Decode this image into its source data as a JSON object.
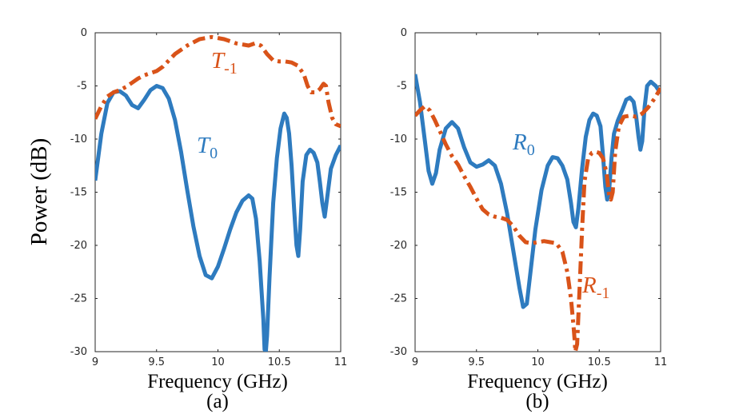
{
  "figure": {
    "ylabel": "Power (dB)"
  },
  "chart_data": [
    {
      "type": "line",
      "panel_label": "(a)",
      "xlabel": "Frequency (GHz)",
      "ylabel": "Power (dB)",
      "xlim": [
        9,
        11
      ],
      "ylim": [
        -30,
        0
      ],
      "xticks": [
        "9",
        "9.5",
        "10",
        "10.5",
        "11"
      ],
      "yticks": [
        "0",
        "-5",
        "-10",
        "-15",
        "-20",
        "-25",
        "-30"
      ],
      "series": [
        {
          "name": "T0",
          "label_main": "T",
          "label_sub": "0",
          "color": "#2e7bbf",
          "style": "solid",
          "points": [
            [
              9.0,
              -13.9
            ],
            [
              9.05,
              -9.5
            ],
            [
              9.1,
              -6.6
            ],
            [
              9.15,
              -5.6
            ],
            [
              9.2,
              -5.5
            ],
            [
              9.25,
              -5.9
            ],
            [
              9.3,
              -6.8
            ],
            [
              9.35,
              -7.1
            ],
            [
              9.4,
              -6.3
            ],
            [
              9.45,
              -5.4
            ],
            [
              9.5,
              -5.0
            ],
            [
              9.55,
              -5.2
            ],
            [
              9.6,
              -6.2
            ],
            [
              9.65,
              -8.2
            ],
            [
              9.7,
              -11.2
            ],
            [
              9.75,
              -14.8
            ],
            [
              9.8,
              -18.2
            ],
            [
              9.85,
              -21.0
            ],
            [
              9.9,
              -22.8
            ],
            [
              9.95,
              -23.1
            ],
            [
              10.0,
              -22.0
            ],
            [
              10.05,
              -20.3
            ],
            [
              10.1,
              -18.5
            ],
            [
              10.15,
              -16.9
            ],
            [
              10.2,
              -15.8
            ],
            [
              10.25,
              -15.3
            ],
            [
              10.28,
              -15.6
            ],
            [
              10.31,
              -17.5
            ],
            [
              10.34,
              -21.5
            ],
            [
              10.37,
              -27.0
            ],
            [
              10.38,
              -29.8
            ],
            [
              10.39,
              -30.0
            ],
            [
              10.4,
              -28.5
            ],
            [
              10.42,
              -23.0
            ],
            [
              10.45,
              -16.0
            ],
            [
              10.48,
              -11.8
            ],
            [
              10.51,
              -9.0
            ],
            [
              10.54,
              -7.6
            ],
            [
              10.56,
              -8.0
            ],
            [
              10.58,
              -9.5
            ],
            [
              10.6,
              -12.5
            ],
            [
              10.62,
              -16.5
            ],
            [
              10.64,
              -20.0
            ],
            [
              10.655,
              -21.0
            ],
            [
              10.67,
              -18.5
            ],
            [
              10.69,
              -14.0
            ],
            [
              10.72,
              -11.5
            ],
            [
              10.75,
              -11.0
            ],
            [
              10.78,
              -11.3
            ],
            [
              10.81,
              -12.2
            ],
            [
              10.83,
              -14.0
            ],
            [
              10.85,
              -16.0
            ],
            [
              10.87,
              -17.3
            ],
            [
              10.89,
              -15.5
            ],
            [
              10.92,
              -12.8
            ],
            [
              10.96,
              -11.5
            ],
            [
              11.0,
              -10.6
            ]
          ]
        },
        {
          "name": "T-1",
          "label_main": "T",
          "label_sub": "-1",
          "color": "#d95319",
          "style": "dashdot",
          "points": [
            [
              9.0,
              -8.1
            ],
            [
              9.05,
              -6.9
            ],
            [
              9.1,
              -6.0
            ],
            [
              9.15,
              -5.6
            ],
            [
              9.2,
              -5.4
            ],
            [
              9.25,
              -5.1
            ],
            [
              9.3,
              -4.7
            ],
            [
              9.35,
              -4.3
            ],
            [
              9.4,
              -4.0
            ],
            [
              9.45,
              -3.8
            ],
            [
              9.5,
              -3.6
            ],
            [
              9.55,
              -3.2
            ],
            [
              9.6,
              -2.6
            ],
            [
              9.65,
              -2.0
            ],
            [
              9.7,
              -1.6
            ],
            [
              9.75,
              -1.2
            ],
            [
              9.8,
              -0.9
            ],
            [
              9.85,
              -0.6
            ],
            [
              9.9,
              -0.5
            ],
            [
              9.95,
              -0.4
            ],
            [
              10.0,
              -0.5
            ],
            [
              10.05,
              -0.6
            ],
            [
              10.1,
              -0.8
            ],
            [
              10.15,
              -1.0
            ],
            [
              10.2,
              -1.1
            ],
            [
              10.25,
              -1.2
            ],
            [
              10.3,
              -1.0
            ],
            [
              10.35,
              -1.2
            ],
            [
              10.4,
              -2.0
            ],
            [
              10.45,
              -2.6
            ],
            [
              10.5,
              -2.7
            ],
            [
              10.55,
              -2.7
            ],
            [
              10.6,
              -2.8
            ],
            [
              10.65,
              -3.1
            ],
            [
              10.7,
              -3.9
            ],
            [
              10.73,
              -5.0
            ],
            [
              10.76,
              -5.6
            ],
            [
              10.8,
              -5.6
            ],
            [
              10.83,
              -5.3
            ],
            [
              10.86,
              -4.8
            ],
            [
              10.88,
              -5.0
            ],
            [
              10.9,
              -6.5
            ],
            [
              10.93,
              -8.0
            ],
            [
              10.96,
              -8.6
            ],
            [
              11.0,
              -8.8
            ]
          ]
        }
      ]
    },
    {
      "type": "line",
      "panel_label": "(b)",
      "xlabel": "Frequency (GHz)",
      "ylabel": "Power (dB)",
      "xlim": [
        9,
        11
      ],
      "ylim": [
        -30,
        0
      ],
      "xticks": [
        "9",
        "9.5",
        "10",
        "10.5",
        "11"
      ],
      "yticks": [
        "0",
        "-5",
        "-10",
        "-15",
        "-20",
        "-25",
        "-30"
      ],
      "series": [
        {
          "name": "R0",
          "label_main": "R",
          "label_sub": "0",
          "color": "#2e7bbf",
          "style": "solid",
          "points": [
            [
              9.0,
              -3.9
            ],
            [
              9.04,
              -6.5
            ],
            [
              9.08,
              -10.2
            ],
            [
              9.11,
              -13.0
            ],
            [
              9.14,
              -14.2
            ],
            [
              9.17,
              -13.2
            ],
            [
              9.2,
              -11.0
            ],
            [
              9.25,
              -9.0
            ],
            [
              9.3,
              -8.4
            ],
            [
              9.35,
              -9.0
            ],
            [
              9.4,
              -10.8
            ],
            [
              9.45,
              -12.2
            ],
            [
              9.5,
              -12.6
            ],
            [
              9.55,
              -12.4
            ],
            [
              9.6,
              -12.0
            ],
            [
              9.65,
              -12.5
            ],
            [
              9.7,
              -14.2
            ],
            [
              9.75,
              -17.0
            ],
            [
              9.8,
              -20.5
            ],
            [
              9.85,
              -24.0
            ],
            [
              9.88,
              -25.8
            ],
            [
              9.91,
              -25.5
            ],
            [
              9.94,
              -22.5
            ],
            [
              9.98,
              -18.5
            ],
            [
              10.03,
              -14.8
            ],
            [
              10.08,
              -12.5
            ],
            [
              10.12,
              -11.7
            ],
            [
              10.16,
              -11.8
            ],
            [
              10.2,
              -12.5
            ],
            [
              10.24,
              -13.8
            ],
            [
              10.27,
              -16.0
            ],
            [
              10.29,
              -17.8
            ],
            [
              10.31,
              -18.3
            ],
            [
              10.33,
              -16.5
            ],
            [
              10.36,
              -12.8
            ],
            [
              10.39,
              -9.8
            ],
            [
              10.42,
              -8.2
            ],
            [
              10.45,
              -7.6
            ],
            [
              10.48,
              -7.8
            ],
            [
              10.51,
              -8.8
            ],
            [
              10.53,
              -11.5
            ],
            [
              10.55,
              -14.5
            ],
            [
              10.565,
              -15.7
            ],
            [
              10.58,
              -15.0
            ],
            [
              10.6,
              -11.8
            ],
            [
              10.62,
              -9.5
            ],
            [
              10.65,
              -8.3
            ],
            [
              10.69,
              -7.2
            ],
            [
              10.72,
              -6.3
            ],
            [
              10.75,
              -6.1
            ],
            [
              10.78,
              -6.5
            ],
            [
              10.8,
              -7.8
            ],
            [
              10.82,
              -9.8
            ],
            [
              10.835,
              -11.0
            ],
            [
              10.85,
              -10.2
            ],
            [
              10.87,
              -7.0
            ],
            [
              10.89,
              -5.0
            ],
            [
              10.92,
              -4.6
            ],
            [
              10.96,
              -5.0
            ],
            [
              11.0,
              -5.7
            ]
          ]
        },
        {
          "name": "R-1",
          "label_main": "R",
          "label_sub": "-1",
          "color": "#d95319",
          "style": "dashdot",
          "points": [
            [
              9.0,
              -7.8
            ],
            [
              9.04,
              -7.3
            ],
            [
              9.08,
              -6.9
            ],
            [
              9.12,
              -7.3
            ],
            [
              9.16,
              -8.2
            ],
            [
              9.2,
              -9.2
            ],
            [
              9.25,
              -10.5
            ],
            [
              9.3,
              -11.6
            ],
            [
              9.35,
              -12.4
            ],
            [
              9.4,
              -13.5
            ],
            [
              9.45,
              -14.5
            ],
            [
              9.5,
              -15.6
            ],
            [
              9.55,
              -16.6
            ],
            [
              9.6,
              -17.1
            ],
            [
              9.65,
              -17.3
            ],
            [
              9.7,
              -17.4
            ],
            [
              9.75,
              -17.6
            ],
            [
              9.8,
              -18.2
            ],
            [
              9.85,
              -19.1
            ],
            [
              9.9,
              -19.7
            ],
            [
              9.95,
              -19.8
            ],
            [
              10.0,
              -19.7
            ],
            [
              10.05,
              -19.6
            ],
            [
              10.1,
              -19.7
            ],
            [
              10.15,
              -19.8
            ],
            [
              10.2,
              -20.6
            ],
            [
              10.24,
              -22.5
            ],
            [
              10.27,
              -25.0
            ],
            [
              10.29,
              -27.5
            ],
            [
              10.3,
              -29.0
            ],
            [
              10.305,
              -30.0
            ],
            [
              10.32,
              -29.3
            ],
            [
              10.34,
              -24.0
            ],
            [
              10.36,
              -18.5
            ],
            [
              10.38,
              -14.0
            ],
            [
              10.41,
              -11.8
            ],
            [
              10.44,
              -11.3
            ],
            [
              10.47,
              -11.2
            ],
            [
              10.5,
              -11.3
            ],
            [
              10.53,
              -11.8
            ],
            [
              10.56,
              -13.2
            ],
            [
              10.58,
              -15.2
            ],
            [
              10.595,
              -15.7
            ],
            [
              10.61,
              -15.0
            ],
            [
              10.63,
              -11.2
            ],
            [
              10.66,
              -8.8
            ],
            [
              10.7,
              -7.9
            ],
            [
              10.75,
              -7.8
            ],
            [
              10.8,
              -7.9
            ],
            [
              10.85,
              -7.6
            ],
            [
              10.9,
              -7.0
            ],
            [
              10.95,
              -6.2
            ],
            [
              11.0,
              -5.2
            ]
          ]
        }
      ]
    }
  ]
}
